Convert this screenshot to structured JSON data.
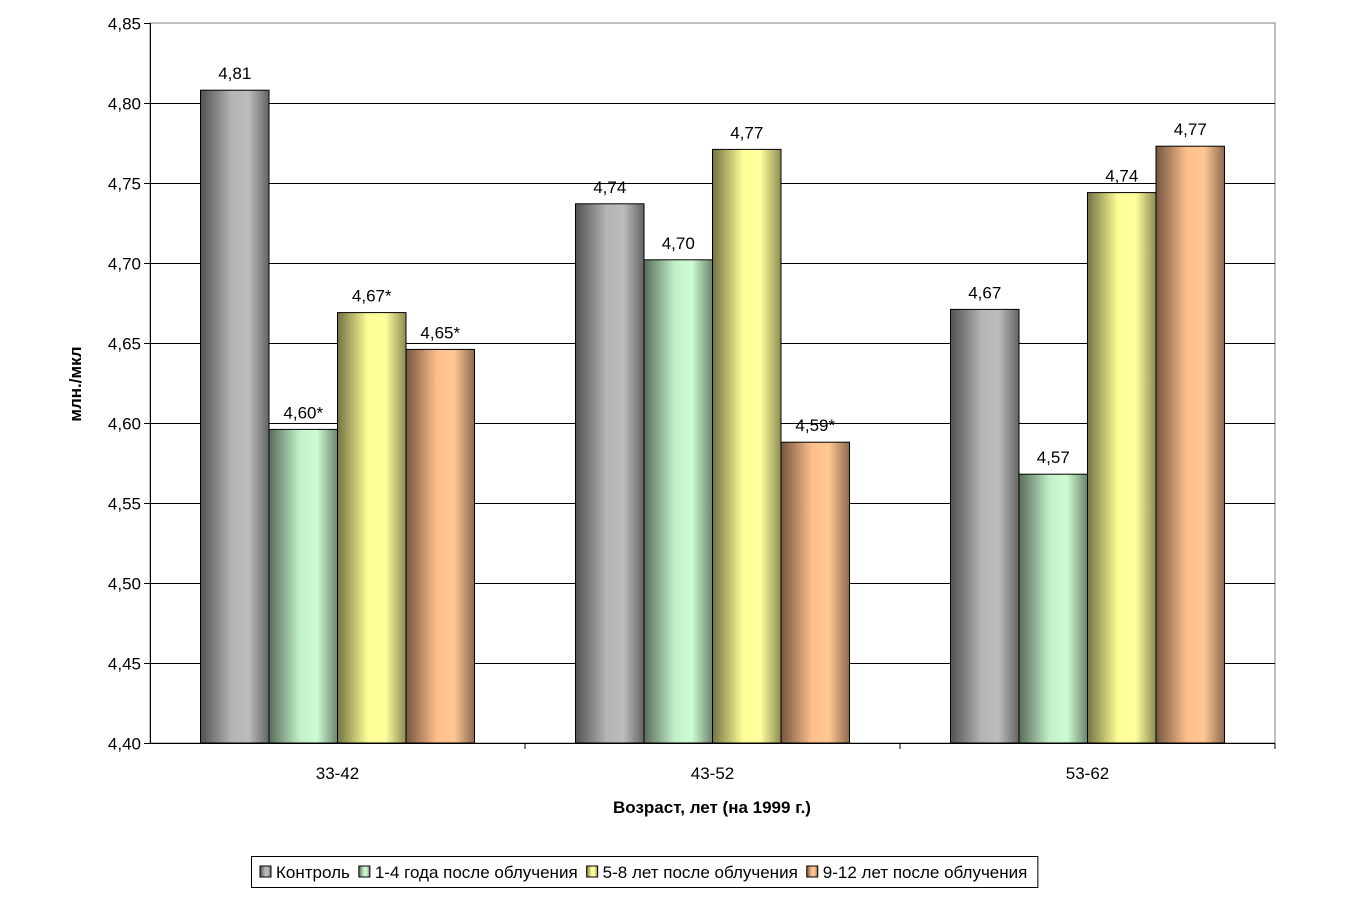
{
  "chart_data": {
    "type": "bar",
    "title": "",
    "xlabel": "Возраст, лет (на 1999 г.)",
    "ylabel": "млн./мкл",
    "ylim": [
      4.4,
      4.85
    ],
    "ytick_step": 0.05,
    "yticks": [
      "4,40",
      "4,45",
      "4,50",
      "4,55",
      "4,60",
      "4,65",
      "4,70",
      "4,75",
      "4,80",
      "4,85"
    ],
    "grid": true,
    "legend_position": "bottom",
    "categories": [
      "33-42",
      "43-52",
      "53-62"
    ],
    "series": [
      {
        "name": "Контроль",
        "color": "#b4b4b4",
        "values": [
          4.808,
          4.737,
          4.671
        ],
        "labels": [
          "4,81",
          "4,74",
          "4,67"
        ]
      },
      {
        "name": "1-4 года после облучения",
        "color": "#c3f0c8",
        "values": [
          4.596,
          4.702,
          4.568
        ],
        "labels": [
          "4,60*",
          "4,70",
          "4,57"
        ]
      },
      {
        "name": "5-8 лет после облучения",
        "color": "#ffff96",
        "values": [
          4.669,
          4.771,
          4.744
        ],
        "labels": [
          "4,67*",
          "4,77",
          "4,74"
        ]
      },
      {
        "name": "9-12 лет после облучения",
        "color": "#ffbe8c",
        "values": [
          4.646,
          4.588,
          4.773
        ],
        "labels": [
          "4,65*",
          "4,59*",
          "4,77"
        ]
      }
    ]
  }
}
